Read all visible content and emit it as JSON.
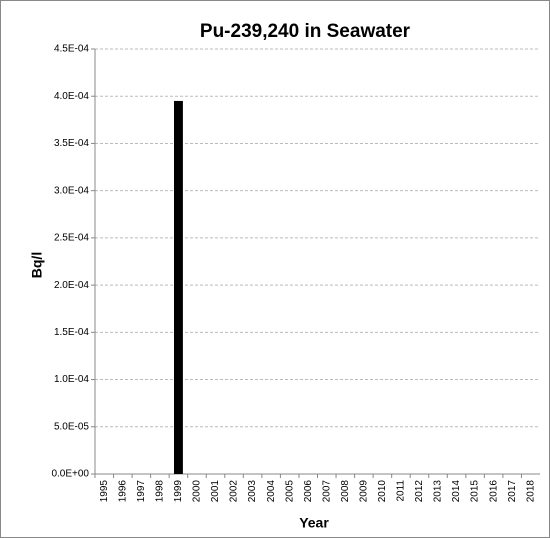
{
  "chart_data": {
    "type": "bar",
    "title": "Pu-239,240 in Seawater",
    "x_label": "Year",
    "y_label": "Bq/l",
    "categories": [
      "1995",
      "1996",
      "1997",
      "1998",
      "1999",
      "2000",
      "2001",
      "2002",
      "2003",
      "2004",
      "2005",
      "2006",
      "2007",
      "2008",
      "2009",
      "2010",
      "2011",
      "2012",
      "2013",
      "2014",
      "2015",
      "2016",
      "2017",
      "2018"
    ],
    "values": [
      null,
      null,
      null,
      null,
      0.000395,
      null,
      null,
      null,
      null,
      null,
      null,
      null,
      null,
      null,
      null,
      null,
      null,
      null,
      null,
      null,
      null,
      null,
      null,
      null
    ],
    "color": "#000000",
    "ylim": [
      0,
      0.00045
    ],
    "yticks": [
      {
        "value": 0,
        "label": "0.0E+00"
      },
      {
        "value": 5e-05,
        "label": "5.0E-05"
      },
      {
        "value": 0.0001,
        "label": "1.0E-04"
      },
      {
        "value": 0.00015,
        "label": "1.5E-04"
      },
      {
        "value": 0.0002,
        "label": "2.0E-04"
      },
      {
        "value": 0.00025,
        "label": "2.5E-04"
      },
      {
        "value": 0.0003,
        "label": "3.0E-04"
      },
      {
        "value": 0.00035,
        "label": "3.5E-04"
      },
      {
        "value": 0.0004,
        "label": "4.0E-04"
      },
      {
        "value": 0.00045,
        "label": "4.5E-04"
      }
    ],
    "grid": true
  }
}
